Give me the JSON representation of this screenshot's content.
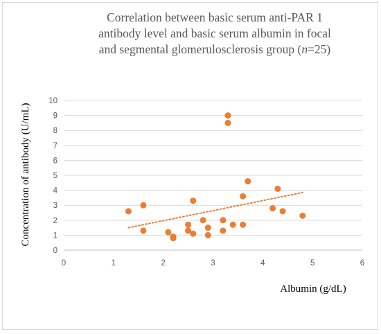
{
  "chart_data": {
    "type": "scatter",
    "title_lines": [
      "Correlation between basic serum anti-PAR 1",
      "antibody level and basic serum albumin in focal",
      "and segmental glomerulosclerosis group (",
      "n",
      "=25)"
    ],
    "xlabel": "Albumin (g/dL)",
    "ylabel": "Concentration of antibody (U/mL)",
    "xlim": [
      0,
      6
    ],
    "ylim": [
      0,
      10
    ],
    "xticks": [
      "0",
      "1",
      "2",
      "3",
      "4",
      "5",
      "6"
    ],
    "yticks": [
      "0",
      "1",
      "2",
      "3",
      "4",
      "5",
      "6",
      "7",
      "8",
      "9",
      "10"
    ],
    "grid": "horizontal",
    "legend": "none",
    "marker_color": "#ED7D31",
    "trendline": {
      "type": "linear",
      "style": "dotted",
      "color": "#ED7D31",
      "x": [
        1.3,
        4.8
      ],
      "y": [
        1.5,
        3.85
      ]
    },
    "points": [
      {
        "x": 1.3,
        "y": 2.6
      },
      {
        "x": 1.6,
        "y": 3.0
      },
      {
        "x": 1.6,
        "y": 1.3
      },
      {
        "x": 2.1,
        "y": 1.2
      },
      {
        "x": 2.2,
        "y": 0.9
      },
      {
        "x": 2.2,
        "y": 0.8
      },
      {
        "x": 2.5,
        "y": 1.7
      },
      {
        "x": 2.5,
        "y": 1.3
      },
      {
        "x": 2.6,
        "y": 3.3
      },
      {
        "x": 2.6,
        "y": 1.1
      },
      {
        "x": 2.8,
        "y": 2.0
      },
      {
        "x": 2.9,
        "y": 1.5
      },
      {
        "x": 2.9,
        "y": 1.0
      },
      {
        "x": 3.2,
        "y": 2.0
      },
      {
        "x": 3.2,
        "y": 1.3
      },
      {
        "x": 3.3,
        "y": 9.0
      },
      {
        "x": 3.3,
        "y": 8.5
      },
      {
        "x": 3.4,
        "y": 1.7
      },
      {
        "x": 3.6,
        "y": 3.6
      },
      {
        "x": 3.6,
        "y": 1.7
      },
      {
        "x": 3.7,
        "y": 4.6
      },
      {
        "x": 4.2,
        "y": 2.8
      },
      {
        "x": 4.3,
        "y": 4.1
      },
      {
        "x": 4.4,
        "y": 2.6
      },
      {
        "x": 4.8,
        "y": 2.3
      }
    ]
  }
}
